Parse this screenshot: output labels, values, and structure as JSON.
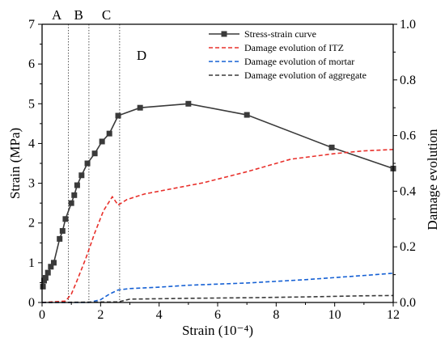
{
  "chart_data": {
    "type": "line",
    "xlabel": "Strain (10⁻⁴)",
    "ylabel": "Strain (MPa)",
    "y2label": "Damage evolution",
    "xlim": [
      0,
      12
    ],
    "ylim": [
      0,
      7
    ],
    "y2lim": [
      0,
      1.0
    ],
    "x_ticks": [
      "0",
      "2",
      "4",
      "6",
      "8",
      "10",
      "12"
    ],
    "y_ticks": [
      "0",
      "1",
      "2",
      "3",
      "4",
      "5",
      "6",
      "7"
    ],
    "y2_ticks": [
      "0.0",
      "0.2",
      "0.4",
      "0.6",
      "0.8",
      "1.0"
    ],
    "grid": false,
    "legend_position": "top-right",
    "region_labels": [
      {
        "label": "A",
        "x": 0.5,
        "y": 7.0
      },
      {
        "label": "B",
        "x": 1.25,
        "y": 7.0
      },
      {
        "label": "C",
        "x": 2.2,
        "y": 7.0
      },
      {
        "label": "D",
        "x": 3.4,
        "y": 6.2
      }
    ],
    "vlines": [
      0.9,
      1.6,
      2.65
    ],
    "series": [
      {
        "name": "Stress-strain curve",
        "axis": "left",
        "style": "solid-square-markers",
        "color": "#3a3a3a",
        "x": [
          0.03,
          0.07,
          0.12,
          0.2,
          0.3,
          0.4,
          0.6,
          0.7,
          0.8,
          1.0,
          1.1,
          1.2,
          1.35,
          1.55,
          1.8,
          2.05,
          2.3,
          2.6,
          3.35,
          5.0,
          7.0,
          9.9,
          12.0
        ],
        "y": [
          0.4,
          0.55,
          0.62,
          0.75,
          0.9,
          1.0,
          1.6,
          1.8,
          2.1,
          2.5,
          2.7,
          2.95,
          3.2,
          3.5,
          3.75,
          4.05,
          4.25,
          4.7,
          4.9,
          5.0,
          4.72,
          3.9,
          3.37
        ]
      },
      {
        "name": "Damage evolution of ITZ",
        "axis": "right",
        "style": "dashed",
        "color": "#e8302b",
        "x": [
          0,
          0.8,
          1.0,
          1.2,
          1.5,
          1.8,
          2.1,
          2.4,
          2.6,
          2.9,
          3.5,
          4.5,
          5.5,
          7.0,
          8.5,
          10.0,
          11.0,
          12.0
        ],
        "y": [
          0.0,
          0.005,
          0.03,
          0.08,
          0.16,
          0.25,
          0.33,
          0.38,
          0.35,
          0.37,
          0.39,
          0.41,
          0.43,
          0.47,
          0.515,
          0.535,
          0.545,
          0.55
        ]
      },
      {
        "name": "Damage evolution of mortar",
        "axis": "right",
        "style": "dashed",
        "color": "#1560d4",
        "x": [
          0,
          1.6,
          2.0,
          2.3,
          2.6,
          3.0,
          4.0,
          5.0,
          7.0,
          9.0,
          11.0,
          12.0
        ],
        "y": [
          0.0,
          0.0,
          0.01,
          0.03,
          0.045,
          0.05,
          0.055,
          0.062,
          0.07,
          0.082,
          0.097,
          0.105
        ]
      },
      {
        "name": "Damage evolution of aggregate",
        "axis": "right",
        "style": "dashed",
        "color": "#3a3a3a",
        "x": [
          0,
          2.6,
          3.0,
          5.0,
          7.0,
          9.0,
          11.0,
          12.0
        ],
        "y": [
          0.0,
          0.002,
          0.012,
          0.015,
          0.017,
          0.02,
          0.024,
          0.025
        ]
      }
    ]
  }
}
